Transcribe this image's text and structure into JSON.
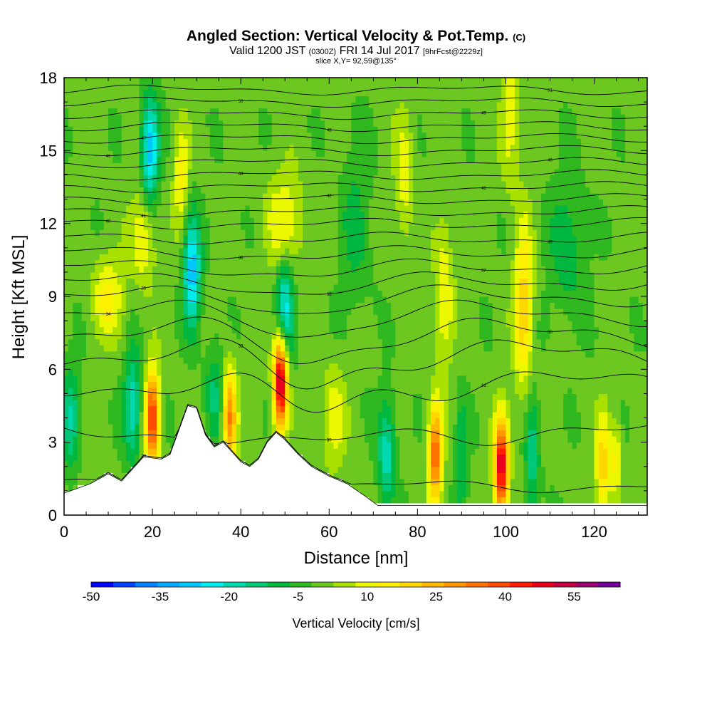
{
  "chart_data": {
    "type": "heatmap",
    "title": "Angled Section: Vertical Velocity & Pot.Temp.",
    "title_suffix": "(C)",
    "subtitle": {
      "valid": "Valid 1200 JST",
      "zulu": "(0300Z)",
      "date": "FRI 14 Jul 2017",
      "forecast": "[9hrFcst@2229z]"
    },
    "slice_label": "slice X,Y= 92,59@135°",
    "xlabel": "Distance [nm]",
    "ylabel": "Height [Kft MSL]",
    "xlim": [
      0,
      132
    ],
    "ylim": [
      0,
      18
    ],
    "x_ticks": [
      "0",
      "20",
      "40",
      "60",
      "80",
      "100",
      "120"
    ],
    "x_tick_values": [
      0,
      20,
      40,
      60,
      80,
      100,
      120
    ],
    "y_ticks": [
      "0",
      "3",
      "6",
      "9",
      "12",
      "15",
      "18"
    ],
    "y_tick_values": [
      0,
      3,
      6,
      9,
      12,
      15,
      18
    ],
    "colorbar": {
      "label": "Vertical Velocity [cm/s]",
      "tick_labels": [
        "-50",
        "-35",
        "-20",
        "-5",
        "10",
        "25",
        "40",
        "55"
      ],
      "tick_values": [
        -50,
        -35,
        -20,
        -5,
        10,
        25,
        40,
        55
      ],
      "min": -50,
      "max": 60,
      "step": 5,
      "colors": [
        "#0000ff",
        "#0040ff",
        "#0080ff",
        "#00a8ff",
        "#00c8ff",
        "#00ecec",
        "#00d8b0",
        "#00c878",
        "#00b840",
        "#30b820",
        "#6cc820",
        "#a8e000",
        "#ecf800",
        "#fff000",
        "#ffd800",
        "#ffb800",
        "#ff9800",
        "#ff7400",
        "#ff4c00",
        "#ff1c00",
        "#e8001c",
        "#c00040",
        "#980070",
        "#700098"
      ]
    },
    "velocity_maxima": [
      {
        "x": 20,
        "y": 4,
        "value": 45
      },
      {
        "x": 37.5,
        "y": 4,
        "value": 35
      },
      {
        "x": 49,
        "y": 5.5,
        "value": 60
      },
      {
        "x": 84,
        "y": 2.5,
        "value": 40
      },
      {
        "x": 99,
        "y": 2,
        "value": 55
      }
    ],
    "velocity_minima": [
      {
        "x": 15.5,
        "y": 4.5,
        "value": -20
      },
      {
        "x": 29,
        "y": 10,
        "value": -30
      },
      {
        "x": 19.5,
        "y": 15,
        "value": -30
      },
      {
        "x": 50,
        "y": 8.5,
        "value": -25
      },
      {
        "x": 73,
        "y": 2.5,
        "value": -20
      },
      {
        "x": 1.5,
        "y": 4,
        "value": -15
      }
    ],
    "theta_contours": [
      {
        "label": "29",
        "base": 1.2
      },
      {
        "label": "30",
        "base": 3.4
      },
      {
        "label": "31",
        "base": 5.4
      },
      {
        "label": "32",
        "base": 6.6
      },
      {
        "label": "33",
        "base": 7.5
      },
      {
        "label": "34",
        "base": 8.3
      },
      {
        "label": "35",
        "base": 9.0
      },
      {
        "label": "36",
        "base": 9.6
      },
      {
        "label": "37",
        "base": 10.2
      },
      {
        "label": "38",
        "base": 10.8
      },
      {
        "label": "39",
        "base": 11.4
      },
      {
        "label": "40",
        "base": 12.0
      },
      {
        "label": "41",
        "base": 12.5
      },
      {
        "label": "42",
        "base": 13.0
      },
      {
        "label": "43",
        "base": 13.5
      },
      {
        "label": "44",
        "base": 14.0
      },
      {
        "label": "45",
        "base": 14.5
      },
      {
        "label": "46",
        "base": 15.0
      },
      {
        "label": "47",
        "base": 15.5
      },
      {
        "label": "48",
        "base": 16.0
      },
      {
        "label": "49",
        "base": 16.5
      },
      {
        "label": "50",
        "base": 17.0
      },
      {
        "label": "51",
        "base": 17.5
      }
    ],
    "terrain": [
      [
        0,
        0.9
      ],
      [
        1.5,
        1.0
      ],
      [
        6,
        1.3
      ],
      [
        10,
        1.7
      ],
      [
        13,
        1.4
      ],
      [
        16,
        2.0
      ],
      [
        18,
        2.4
      ],
      [
        22,
        2.3
      ],
      [
        24,
        2.5
      ],
      [
        26,
        3.5
      ],
      [
        28,
        4.5
      ],
      [
        30,
        4.4
      ],
      [
        32,
        3.3
      ],
      [
        34,
        2.8
      ],
      [
        36,
        3.0
      ],
      [
        38,
        2.6
      ],
      [
        40,
        2.2
      ],
      [
        42,
        2.0
      ],
      [
        44,
        2.3
      ],
      [
        46,
        3.0
      ],
      [
        48,
        3.4
      ],
      [
        50,
        3.1
      ],
      [
        53,
        2.5
      ],
      [
        56,
        2.0
      ],
      [
        60,
        1.6
      ],
      [
        64,
        1.3
      ],
      [
        68,
        0.8
      ],
      [
        71,
        0.4
      ],
      [
        76,
        0.4
      ],
      [
        132,
        0.4
      ]
    ]
  }
}
